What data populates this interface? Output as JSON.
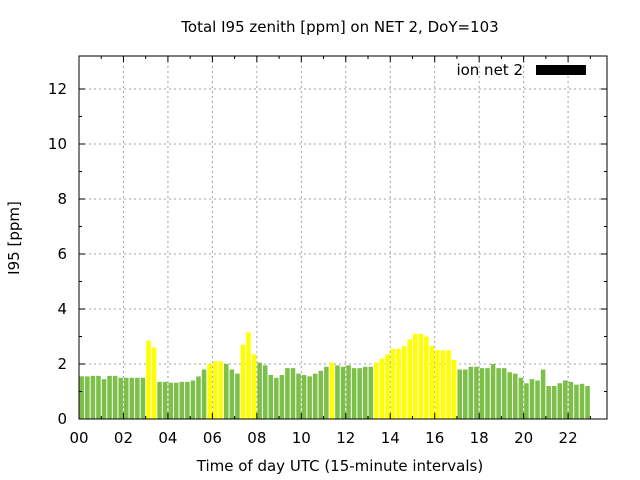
{
  "chart_data": {
    "type": "bar",
    "title": "Total I95 zenith [ppm] on NET 2, DoY=103",
    "xlabel": "Time of day UTC (15-minute intervals)",
    "ylabel": "I95 [ppm]",
    "xlim": [
      0,
      23.75
    ],
    "ylim": [
      0,
      13.2
    ],
    "x_ticks": [
      "00",
      "02",
      "04",
      "06",
      "08",
      "10",
      "12",
      "14",
      "16",
      "18",
      "20",
      "22"
    ],
    "y_ticks": [
      "0",
      "2",
      "4",
      "6",
      "8",
      "10",
      "12"
    ],
    "grid": true,
    "legend_position": "top-right",
    "interval_hours": 0.25,
    "colors": {
      "green": "#7cc04a",
      "yellow": "#ffff00",
      "legend": "#000000"
    },
    "series": [
      {
        "name": "ion net 2",
        "values": [
          1.55,
          1.55,
          1.57,
          1.57,
          1.45,
          1.57,
          1.57,
          1.5,
          1.5,
          1.5,
          1.5,
          1.5,
          2.85,
          2.6,
          1.35,
          1.35,
          1.32,
          1.32,
          1.35,
          1.35,
          1.4,
          1.55,
          1.8,
          2.0,
          2.1,
          2.1,
          2.0,
          1.8,
          1.65,
          2.7,
          3.15,
          2.35,
          2.05,
          1.95,
          1.6,
          1.5,
          1.6,
          1.85,
          1.85,
          1.65,
          1.6,
          1.55,
          1.65,
          1.75,
          1.9,
          2.05,
          1.95,
          1.9,
          1.95,
          1.85,
          1.85,
          1.9,
          1.9,
          2.05,
          2.2,
          2.35,
          2.55,
          2.55,
          2.65,
          2.9,
          3.1,
          3.1,
          3.0,
          2.65,
          2.5,
          2.5,
          2.5,
          2.15,
          1.8,
          1.8,
          1.9,
          1.9,
          1.85,
          1.85,
          2.0,
          1.85,
          1.85,
          1.7,
          1.65,
          1.5,
          1.3,
          1.45,
          1.4,
          1.8,
          1.2,
          1.2,
          1.3,
          1.4,
          1.35,
          1.25,
          1.28,
          1.2
        ],
        "bar_colors": [
          "green",
          "green",
          "green",
          "green",
          "green",
          "green",
          "green",
          "green",
          "green",
          "green",
          "green",
          "green",
          "yellow",
          "yellow",
          "green",
          "green",
          "green",
          "green",
          "green",
          "green",
          "green",
          "green",
          "green",
          "yellow",
          "yellow",
          "yellow",
          "green",
          "green",
          "green",
          "yellow",
          "yellow",
          "yellow",
          "green",
          "green",
          "green",
          "green",
          "green",
          "green",
          "green",
          "green",
          "green",
          "green",
          "green",
          "green",
          "green",
          "yellow",
          "green",
          "green",
          "green",
          "green",
          "green",
          "green",
          "green",
          "yellow",
          "yellow",
          "yellow",
          "yellow",
          "yellow",
          "yellow",
          "yellow",
          "yellow",
          "yellow",
          "yellow",
          "yellow",
          "yellow",
          "yellow",
          "yellow",
          "yellow",
          "green",
          "green",
          "green",
          "green",
          "green",
          "green",
          "green",
          "green",
          "green",
          "green",
          "green",
          "green",
          "green",
          "green",
          "green",
          "green",
          "green",
          "green",
          "green",
          "green",
          "green",
          "green",
          "green",
          "green"
        ]
      }
    ]
  }
}
